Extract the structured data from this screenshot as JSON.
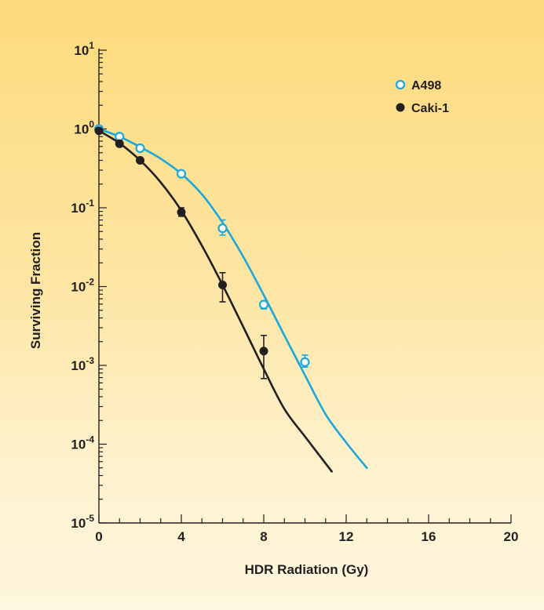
{
  "chart_data": {
    "type": "scatter",
    "xlabel": "HDR Radiation (Gy)",
    "ylabel": "Surviving Fraction",
    "xlim": [
      0,
      20
    ],
    "ylim": [
      1e-05,
      10
    ],
    "y_scale": "log",
    "x_ticks": [
      0,
      4,
      8,
      12,
      16,
      20
    ],
    "x_minor_step": 1,
    "y_ticks": [
      {
        "base": "10",
        "exp": "-5",
        "value": 1e-05
      },
      {
        "base": "10",
        "exp": "-4",
        "value": 0.0001
      },
      {
        "base": "10",
        "exp": "-3",
        "value": 0.001
      },
      {
        "base": "10",
        "exp": "-2",
        "value": 0.01
      },
      {
        "base": "10",
        "exp": "-1",
        "value": 0.1
      },
      {
        "base": "10",
        "exp": "0",
        "value": 1
      },
      {
        "base": "10",
        "exp": "1",
        "value": 10
      }
    ],
    "grid": false,
    "legend": "top-right",
    "series": [
      {
        "name": "A498",
        "marker": "open-circle",
        "color": "#1ca8dd",
        "points": [
          {
            "x": 0,
            "y": 1.0,
            "err_lo": 0.0,
            "err_hi": 0.0
          },
          {
            "x": 1,
            "y": 0.8,
            "err_lo": 0.0,
            "err_hi": 0.0
          },
          {
            "x": 2,
            "y": 0.57,
            "err_lo": 0.0,
            "err_hi": 0.0
          },
          {
            "x": 4,
            "y": 0.27,
            "err_lo": 0.0,
            "err_hi": 0.0
          },
          {
            "x": 6,
            "y": 0.055,
            "err_lo": 0.045,
            "err_hi": 0.07
          },
          {
            "x": 8,
            "y": 0.0059,
            "err_lo": 0.0052,
            "err_hi": 0.0066
          },
          {
            "x": 10,
            "y": 0.0011,
            "err_lo": 0.00095,
            "err_hi": 0.00135
          }
        ],
        "fit": [
          [
            0,
            1.0
          ],
          [
            1,
            0.8
          ],
          [
            2,
            0.59
          ],
          [
            3,
            0.42
          ],
          [
            4,
            0.27
          ],
          [
            5,
            0.148
          ],
          [
            6,
            0.065
          ],
          [
            7,
            0.024
          ],
          [
            8,
            0.0078
          ],
          [
            9,
            0.0024
          ],
          [
            10,
            0.00075
          ],
          [
            11,
            0.00024
          ],
          [
            12,
            0.000105
          ],
          [
            13,
            5e-05
          ]
        ]
      },
      {
        "name": "Caki-1",
        "marker": "filled-circle",
        "color": "#231f20",
        "points": [
          {
            "x": 0,
            "y": 0.95,
            "err_lo": 0.0,
            "err_hi": 0.0
          },
          {
            "x": 1,
            "y": 0.65,
            "err_lo": 0.0,
            "err_hi": 0.0
          },
          {
            "x": 2,
            "y": 0.4,
            "err_lo": 0.0,
            "err_hi": 0.0
          },
          {
            "x": 4,
            "y": 0.088,
            "err_lo": 0.078,
            "err_hi": 0.1
          },
          {
            "x": 6,
            "y": 0.0105,
            "err_lo": 0.0064,
            "err_hi": 0.015
          },
          {
            "x": 8,
            "y": 0.00152,
            "err_lo": 0.00068,
            "err_hi": 0.0024
          }
        ],
        "fit": [
          [
            0,
            0.95
          ],
          [
            1,
            0.66
          ],
          [
            2,
            0.4
          ],
          [
            3,
            0.21
          ],
          [
            4,
            0.092
          ],
          [
            5,
            0.033
          ],
          [
            6,
            0.0105
          ],
          [
            7,
            0.0031
          ],
          [
            8,
            0.0009
          ],
          [
            9,
            0.00028
          ],
          [
            10,
            0.000125
          ],
          [
            11.3,
            4.5e-05
          ]
        ]
      }
    ]
  }
}
